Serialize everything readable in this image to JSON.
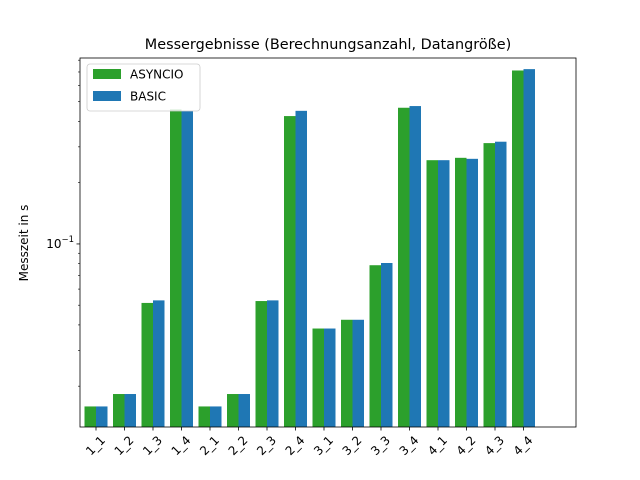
{
  "chart_data": {
    "type": "bar",
    "title": "Messergebnisse (Berechnungsanzahl, Datangröße)",
    "xlabel": "",
    "ylabel": "Messzeit in s",
    "yscale": "log",
    "ylim": [
      0.0126,
      0.82
    ],
    "y_tick_label": "10^-1",
    "legend_position": "upper-left",
    "grid": false,
    "categories": [
      "1_1",
      "1_2",
      "1_3",
      "1_4",
      "2_1",
      "2_2",
      "2_3",
      "2_4",
      "3_1",
      "3_2",
      "3_3",
      "3_4",
      "4_1",
      "4_2",
      "4_3",
      "4_4"
    ],
    "series": [
      {
        "name": "ASYNCIO",
        "color": "#2ca02c",
        "values": [
          0.0159,
          0.0183,
          0.0513,
          0.458,
          0.0159,
          0.0183,
          0.0524,
          0.425,
          0.0384,
          0.0424,
          0.0786,
          0.467,
          0.258,
          0.265,
          0.313,
          0.712
        ]
      },
      {
        "name": "BASIC",
        "color": "#1f77b4",
        "values": [
          0.0159,
          0.0183,
          0.0528,
          0.451,
          0.0159,
          0.0183,
          0.0528,
          0.451,
          0.0384,
          0.0424,
          0.0806,
          0.476,
          0.258,
          0.262,
          0.318,
          0.723
        ]
      }
    ]
  }
}
